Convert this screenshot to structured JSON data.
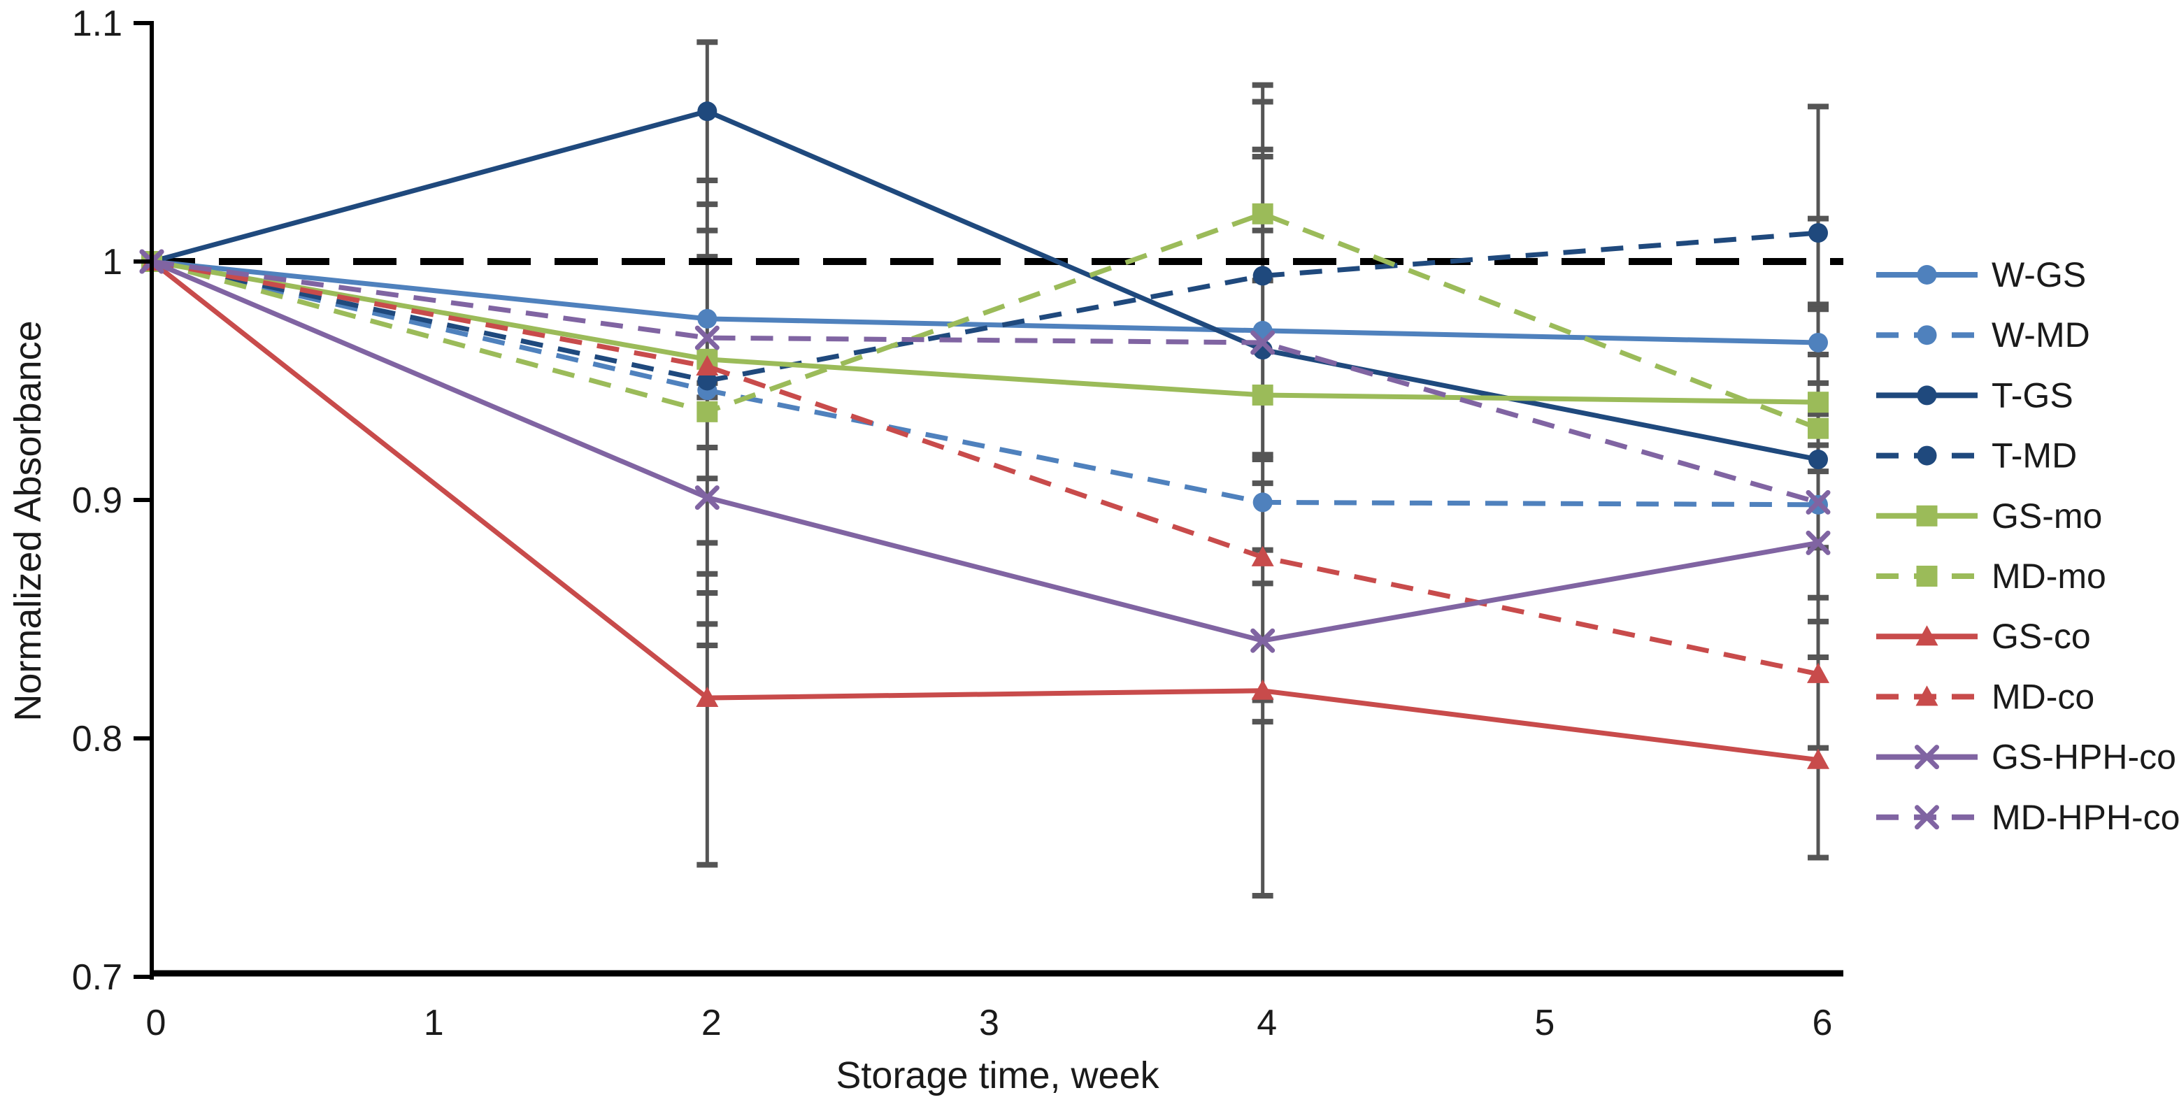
{
  "figure": {
    "background": "#ffffff",
    "text_color": "#1a1a1a",
    "axis_color": "#000000",
    "error_bar_color": "#555555"
  },
  "chart_data": {
    "type": "line",
    "title": "",
    "xlabel": "Storage time, week",
    "ylabel": "Normalized Absorbance",
    "xlim": [
      0,
      6
    ],
    "ylim": [
      0.7,
      1.1
    ],
    "x_tick_labels": [
      "0",
      "1",
      "2",
      "3",
      "4",
      "5",
      "6"
    ],
    "x_tick_values": [
      0,
      1,
      2,
      3,
      4,
      5,
      6
    ],
    "y_tick_labels": [
      "1.1",
      "1",
      "0.9",
      "0.8",
      "0.7"
    ],
    "y_tick_values": [
      1.1,
      1.0,
      0.9,
      0.8,
      0.7
    ],
    "grid": false,
    "legend_position": "right",
    "x": [
      0,
      2,
      4,
      6
    ],
    "reference_line": {
      "y": 1.0,
      "color": "#000000",
      "style": "dashed"
    },
    "series": [
      {
        "name": "W-GS",
        "color": "#4F81BD",
        "dash": "solid",
        "marker": "circle",
        "values": [
          1.0,
          0.976,
          0.971,
          0.966
        ]
      },
      {
        "name": "W-MD",
        "color": "#4F81BD",
        "dash": "dashed",
        "marker": "circle",
        "values": [
          1.0,
          0.946,
          0.899,
          0.898
        ]
      },
      {
        "name": "T-GS",
        "color": "#1F497D",
        "dash": "solid",
        "marker": "circle",
        "values": [
          1.0,
          1.063,
          0.963,
          0.917
        ]
      },
      {
        "name": "T-MD",
        "color": "#1F497D",
        "dash": "dashed",
        "marker": "circle",
        "values": [
          1.0,
          0.95,
          0.994,
          1.012
        ]
      },
      {
        "name": "GS-mo",
        "color": "#9BBB59",
        "dash": "solid",
        "marker": "square",
        "values": [
          1.0,
          0.959,
          0.944,
          0.941
        ]
      },
      {
        "name": "MD-mo",
        "color": "#9BBB59",
        "dash": "dashed",
        "marker": "square",
        "values": [
          1.0,
          0.937,
          1.02,
          0.93
        ]
      },
      {
        "name": "GS-co",
        "color": "#C84B4B",
        "dash": "solid",
        "marker": "triangle",
        "values": [
          1.0,
          0.817,
          0.82,
          0.791
        ]
      },
      {
        "name": "MD-co",
        "color": "#C84B4B",
        "dash": "dashed",
        "marker": "triangle",
        "values": [
          1.0,
          0.956,
          0.876,
          0.827
        ]
      },
      {
        "name": "GS-HPH-co",
        "color": "#8064A2",
        "dash": "solid",
        "marker": "x",
        "values": [
          1.0,
          0.901,
          0.841,
          0.882
        ]
      },
      {
        "name": "MD-HPH-co",
        "color": "#8064A2",
        "dash": "dashed",
        "marker": "x",
        "values": [
          1.0,
          0.968,
          0.966,
          0.899
        ]
      }
    ],
    "error_bars": [
      {
        "week": 2,
        "top": 1.092,
        "bottom": 0.747,
        "caps": [
          1.092,
          1.034,
          1.024,
          1.013,
          1.002,
          0.949,
          0.943,
          0.922,
          0.909,
          0.882,
          0.869,
          0.861,
          0.848,
          0.839,
          0.747
        ]
      },
      {
        "week": 4,
        "top": 1.074,
        "bottom": 0.734,
        "caps": [
          1.074,
          1.067,
          1.047,
          1.044,
          1.013,
          0.992,
          0.919,
          0.917,
          0.907,
          0.879,
          0.865,
          0.816,
          0.807,
          0.734
        ]
      },
      {
        "week": 6,
        "top": 1.065,
        "bottom": 0.75,
        "caps": [
          1.065,
          1.018,
          0.982,
          0.98,
          0.961,
          0.949,
          0.936,
          0.923,
          0.912,
          0.88,
          0.859,
          0.849,
          0.834,
          0.796,
          0.75
        ]
      }
    ]
  }
}
